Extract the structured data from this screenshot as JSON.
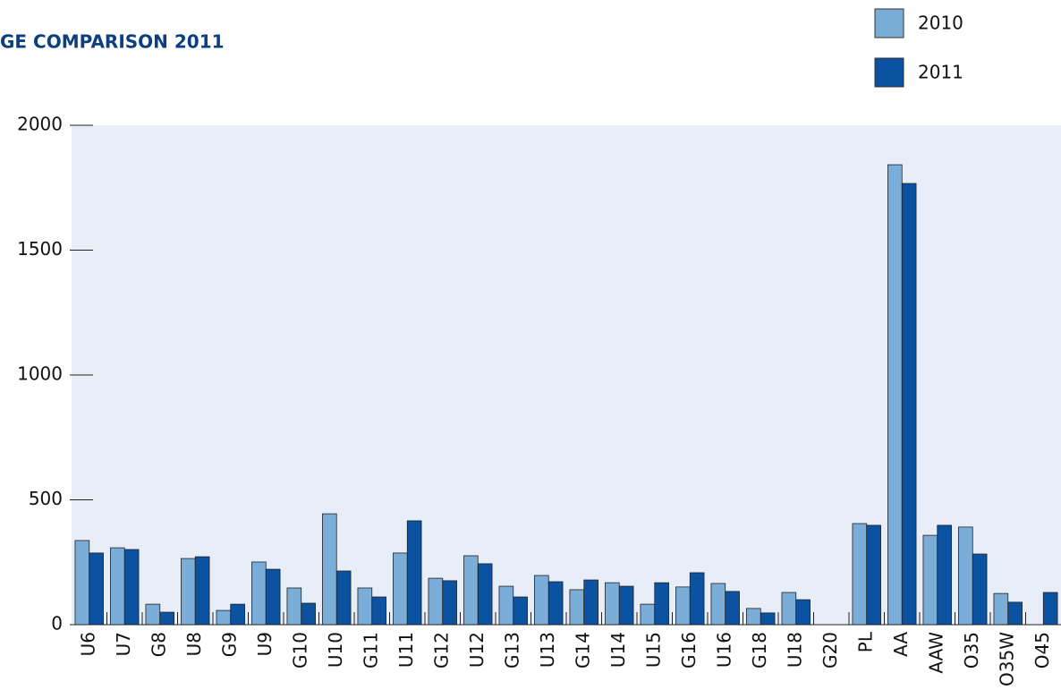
{
  "chart_data": {
    "type": "bar",
    "title": "GE COMPARISON 2011",
    "categories": [
      "U6",
      "U7",
      "G8",
      "U8",
      "G9",
      "U9",
      "G10",
      "U10",
      "G11",
      "U11",
      "G12",
      "U12",
      "G13",
      "U13",
      "G14",
      "U14",
      "U15",
      "G16",
      "U16",
      "G18",
      "U18",
      "G20",
      "PL",
      "AA",
      "AAW",
      "O35",
      "O35W",
      "O45"
    ],
    "series": [
      {
        "name": "2010",
        "color": "#7aaed8",
        "values": [
          337,
          308,
          82,
          265,
          57,
          251,
          147,
          444,
          147,
          287,
          186,
          276,
          154,
          197,
          140,
          168,
          82,
          151,
          165,
          65,
          129,
          null,
          405,
          1842,
          358,
          391,
          125,
          null
        ]
      },
      {
        "name": "2011",
        "color": "#0b52a0",
        "values": [
          287,
          301,
          50,
          272,
          82,
          222,
          86,
          215,
          111,
          416,
          176,
          244,
          111,
          172,
          179,
          154,
          168,
          208,
          133,
          47,
          100,
          null,
          398,
          1767,
          398,
          283,
          90,
          129
        ]
      }
    ],
    "ylim": [
      0,
      2000
    ],
    "yticks": [
      0,
      500,
      1000,
      1500,
      2000
    ],
    "legend": "top-right"
  }
}
